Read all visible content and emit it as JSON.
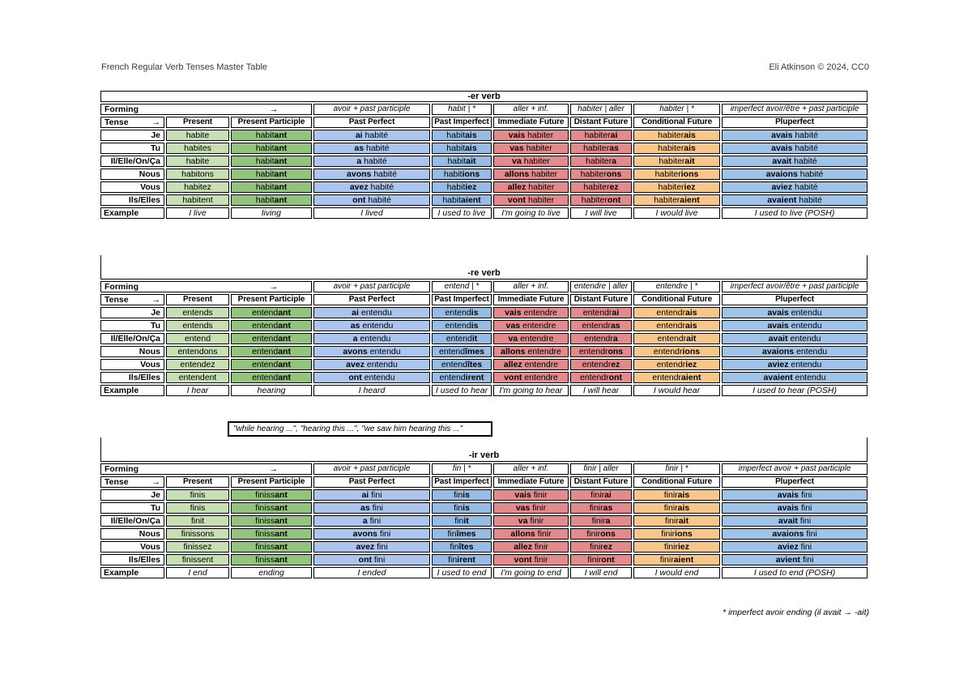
{
  "page": {
    "title": "French Regular Verb Tenses Master Table",
    "credit": "Eli Atkinson © 2024, CC0",
    "participle_note": "\"while hearing ...\", \"hearing this ...\", \"we saw him hearing this ...\"",
    "footnote": "* imperfect avoir ending (il avait → -ait)"
  },
  "colors": {
    "present": "#C6E0B4",
    "present_participle": "#93C47D",
    "past_perfect": "#ABC5ED",
    "past_imperfect": "#96BCE4",
    "immediate_future": "#E28A8C",
    "distant_future": "#E28A8C",
    "conditional_future": "#F7C78A",
    "pluperfect": "#A0C4E8"
  },
  "tables": [
    {
      "title": "-er verb",
      "forming": {
        "label": "Forming",
        "arrow": "→",
        "cols": [
          "avoir + past participle",
          "habit | *",
          "aller + inf.",
          "habiter | aller",
          "habiter | *",
          "imperfect avoir/être + past participle"
        ]
      },
      "tense": {
        "label": "Tense",
        "arrow": "→",
        "cols": [
          "Present",
          "Present Participle",
          "Past Perfect",
          "Past Imperfect",
          "Immediate Future",
          "Distant Future",
          "Conditional Future",
          "Pluperfect"
        ]
      },
      "rows": [
        {
          "label": "Je",
          "cells": [
            "habite",
            "habit**ant**",
            "**ai** habité",
            "habit**ais**",
            "**vais** habiter",
            "habiter**ai**",
            "habiter**ais**",
            "**avais** habité"
          ]
        },
        {
          "label": "Tu",
          "cells": [
            "habites",
            "habit**ant**",
            "**as** habité",
            "habit**ais**",
            "**vas** habiter",
            "habiter**as**",
            "habiter**ais**",
            "**avais** habité"
          ]
        },
        {
          "label": "Il/Elle/On/Ça",
          "cells": [
            "habite",
            "habit**ant**",
            "**a** habité",
            "habit**ait**",
            "**va** habiter",
            "habiter**a**",
            "habiter**ait**",
            "**avait** habité"
          ]
        },
        {
          "label": "Nous",
          "cells": [
            "habitons",
            "habit**ant**",
            "**avons** habité",
            "habit**ions**",
            "**allons** habiter",
            "habiter**ons**",
            "habiter**ions**",
            "**avaions** habité"
          ]
        },
        {
          "label": "Vous",
          "cells": [
            "habitez",
            "habit**ant**",
            "**avez** habité",
            "habit**iez**",
            "**allez** habiter",
            "habiter**ez**",
            "habiter**iez**",
            "**aviez** habité"
          ]
        },
        {
          "label": "Ils/Elles",
          "cells": [
            "habitent",
            "habit**ant**",
            "**ont** habité",
            "habit**aient**",
            "**vont** habiter",
            "habiter**ont**",
            "habiter**aient**",
            "**avaient** habité"
          ]
        }
      ],
      "example": {
        "label": "Example",
        "cells": [
          "I live",
          "living",
          "I lived",
          "I used to live",
          "I'm going to live",
          "I will live",
          "I would live",
          "I used to live (POSH)"
        ]
      }
    },
    {
      "title": "-re verb",
      "forming": {
        "label": "Forming",
        "arrow": "→",
        "cols": [
          "avoir + past participle",
          "entend | *",
          "aller + inf.",
          "entendre | aller",
          "entendre | *",
          "imperfect avoir/être + past participle"
        ]
      },
      "tense": {
        "label": "Tense",
        "arrow": "→",
        "cols": [
          "Present",
          "Present Participle",
          "Past Perfect",
          "Past Imperfect",
          "Immediate Future",
          "Distant Future",
          "Conditional Future",
          "Pluperfect"
        ]
      },
      "rows": [
        {
          "label": "Je",
          "cells": [
            "entends",
            "entend**ant**",
            "**ai** entendu",
            "entend**is**",
            "**vais** entendre",
            "entendr**ai**",
            "entendr**ais**",
            "**avais** entendu"
          ]
        },
        {
          "label": "Tu",
          "cells": [
            "entends",
            "entend**ant**",
            "**as** entendu",
            "entend**is**",
            "**vas** entendre",
            "entendr**as**",
            "entendr**ais**",
            "**avais** entendu"
          ]
        },
        {
          "label": "Il/Elle/On/Ça",
          "cells": [
            "entend",
            "entend**ant**",
            "**a** entendu",
            "entend**it**",
            "**va** entendre",
            "entendr**a**",
            "entendr**ait**",
            "**avait** entendu"
          ]
        },
        {
          "label": "Nous",
          "cells": [
            "entendons",
            "entend**ant**",
            "**avons** entendu",
            "entend**îmes**",
            "**allons** entendre",
            "entendr**ons**",
            "entendr**ions**",
            "**avaions** entendu"
          ]
        },
        {
          "label": "Vous",
          "cells": [
            "entendez",
            "entend**ant**",
            "**avez** entendu",
            "entend**îtes**",
            "**allez** entendre",
            "entendr**ez**",
            "entendr**iez**",
            "**aviez** entendu"
          ]
        },
        {
          "label": "Ils/Elles",
          "cells": [
            "entendent",
            "entend**ant**",
            "**ont** entendu",
            "entend**irent**",
            "**vont** entendre",
            "entendr**ont**",
            "entendr**aient**",
            "**avaient** entendu"
          ]
        }
      ],
      "example": {
        "label": "Example",
        "cells": [
          "I hear",
          "hearing",
          "I heard",
          "I used to hear",
          "I'm going to hear",
          "I will hear",
          "I would hear",
          "I used to hear (POSH)"
        ]
      }
    },
    {
      "title": "-ir verb",
      "forming": {
        "label": "Forming",
        "arrow": "→",
        "cols": [
          "avoir + past participle",
          "fin | *",
          "aller + inf.",
          "finir | aller",
          "finir | *",
          "imperfect avoir + past participle"
        ]
      },
      "tense": {
        "label": "Tense",
        "arrow": "→",
        "cols": [
          "Present",
          "Present Participle",
          "Past Perfect",
          "Past Imperfect",
          "Immediate Future",
          "Distant Future",
          "Conditional Future",
          "Pluperfect"
        ]
      },
      "rows": [
        {
          "label": "Je",
          "cells": [
            "finis",
            "finiss**ant**",
            "**ai** fini",
            "fin**is**",
            "**vais** finir",
            "finir**ai**",
            "finir**ais**",
            "**avais** fini"
          ]
        },
        {
          "label": "Tu",
          "cells": [
            "finis",
            "finiss**ant**",
            "**as** fini",
            "fin**is**",
            "**vas** finir",
            "finir**as**",
            "finir**ais**",
            "**avais** fini"
          ]
        },
        {
          "label": "Il/Elle/On/Ça",
          "cells": [
            "finit",
            "finiss**ant**",
            "**a** fini",
            "fin**it**",
            "**va** finir",
            "finir**a**",
            "finir**ait**",
            "**avait** fini"
          ]
        },
        {
          "label": "Nous",
          "cells": [
            "finissons",
            "finiss**ant**",
            "**avons** fini",
            "fin**îmes**",
            "**allons** finir",
            "finir**ons**",
            "finir**ions**",
            "**avaions** fini"
          ]
        },
        {
          "label": "Vous",
          "cells": [
            "finissez",
            "finiss**ant**",
            "**avez** fini",
            "fin**îtes**",
            "**allez** finir",
            "finir**ez**",
            "finir**iez**",
            "**aviez** fini"
          ]
        },
        {
          "label": "Ils/Elles",
          "cells": [
            "finissent",
            "finiss**ant**",
            "**ont** fini",
            "fin**irent**",
            "**vont** finir",
            "finir**ont**",
            "finir**aient**",
            "**avient** fini"
          ]
        }
      ],
      "example": {
        "label": "Example",
        "cells": [
          "I end",
          "ending",
          "I ended",
          "I used to end",
          "I'm going to end",
          "I will end",
          "I would end",
          "I used to end (POSH)"
        ]
      }
    }
  ]
}
